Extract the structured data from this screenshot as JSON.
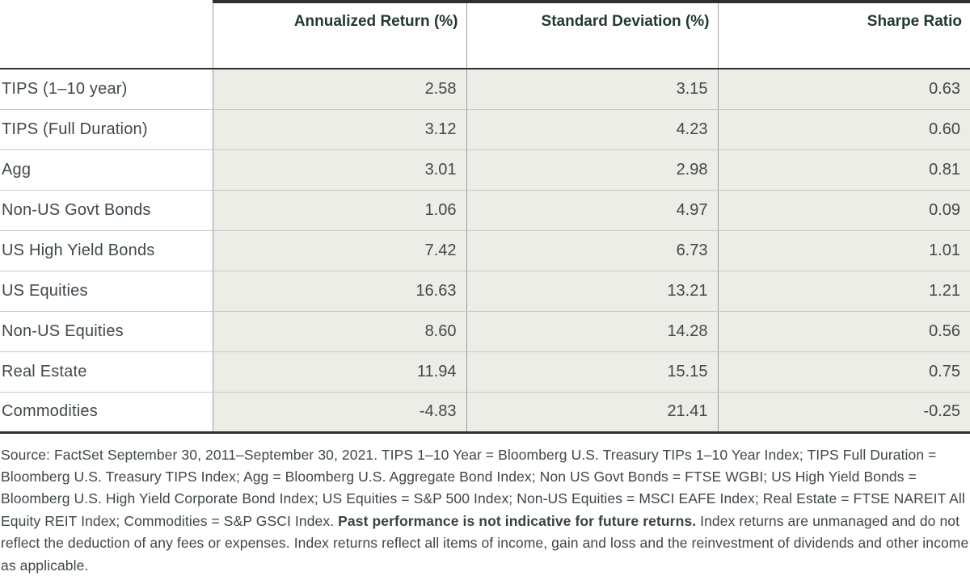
{
  "table": {
    "columns": {
      "label": "",
      "annualized_return": "Annualized Return (%)",
      "standard_deviation": "Standard Deviation (%)",
      "sharpe_ratio": "Sharpe Ratio"
    },
    "rows": [
      {
        "label": "TIPS (1–10 year)",
        "values": [
          "2.58",
          "3.15",
          "0.63"
        ]
      },
      {
        "label": "TIPS (Full Duration)",
        "values": [
          "3.12",
          "4.23",
          "0.60"
        ]
      },
      {
        "label": "Agg",
        "values": [
          "3.01",
          "2.98",
          "0.81"
        ]
      },
      {
        "label": "Non-US Govt Bonds",
        "values": [
          "1.06",
          "4.97",
          "0.09"
        ]
      },
      {
        "label": "US High Yield Bonds",
        "values": [
          "7.42",
          "6.73",
          "1.01"
        ]
      },
      {
        "label": "US Equities",
        "values": [
          "16.63",
          "13.21",
          "1.21"
        ]
      },
      {
        "label": "Non-US Equities",
        "values": [
          "8.60",
          "14.28",
          "0.56"
        ]
      },
      {
        "label": "Real Estate",
        "values": [
          "11.94",
          "15.15",
          "0.75"
        ]
      },
      {
        "label": "Commodities",
        "values": [
          "-4.83",
          "21.41",
          "-0.25"
        ]
      }
    ]
  },
  "chart_data": {
    "type": "table",
    "title": "",
    "categories": [
      "TIPS (1–10 year)",
      "TIPS (Full Duration)",
      "Agg",
      "Non-US Govt Bonds",
      "US High Yield Bonds",
      "US Equities",
      "Non-US Equities",
      "Real Estate",
      "Commodities"
    ],
    "series": [
      {
        "name": "Annualized Return (%)",
        "values": [
          2.58,
          3.12,
          3.01,
          1.06,
          7.42,
          16.63,
          8.6,
          11.94,
          -4.83
        ]
      },
      {
        "name": "Standard Deviation (%)",
        "values": [
          3.15,
          4.23,
          2.98,
          4.97,
          6.73,
          13.21,
          14.28,
          15.15,
          21.41
        ]
      },
      {
        "name": "Sharpe Ratio",
        "values": [
          0.63,
          0.6,
          0.81,
          0.09,
          1.01,
          1.21,
          0.56,
          0.75,
          -0.25
        ]
      }
    ]
  },
  "footnote": {
    "before_bold": "Source: FactSet September 30, 2011–September 30, 2021. TIPS 1–10 Year = Bloomberg U.S. Treasury TIPs 1–10 Year Index; TIPS Full Duration = Bloomberg U.S. Treasury TIPS Index; Agg = Bloomberg U.S. Aggregate Bond Index; Non US Govt Bonds = FTSE WGBI; US High Yield Bonds = Bloomberg U.S. High Yield Corporate Bond Index; US Equities = S&P 500 Index; Non-US Equities = MSCI EAFE Index; Real Estate = FTSE NAREIT All Equity REIT Index; Commodities = S&P GSCI Index. ",
    "bold": "Past performance is not indicative for future returns.",
    "after_bold": " Index returns are unmanaged and do not reflect the deduction of any fees or expenses. Index returns reflect all items of income, gain and loss and the reinvestment of dividends and other income as applicable."
  },
  "colors": {
    "header_text": "#21392f",
    "body_text": "#3f4a44",
    "cell_shading": "#ecede7",
    "row_separator": "#c7c9c2",
    "column_separator": "#999e98",
    "heavy_rule": "#2c302b"
  }
}
